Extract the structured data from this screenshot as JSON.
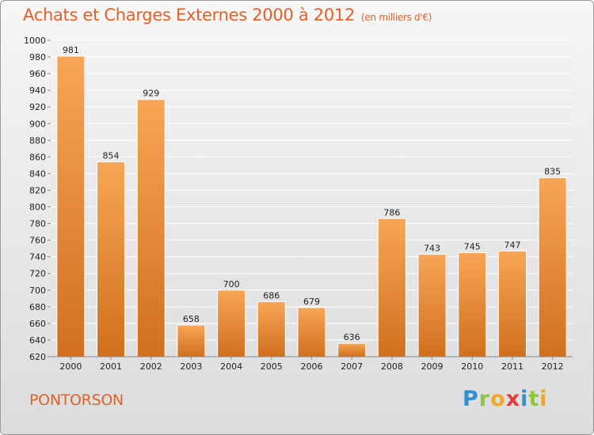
{
  "title": "Achats et Charges Externes 2000 à 2012",
  "subtitle": "(en milliers d'€)",
  "place": "PONTORSON",
  "brand": {
    "letters": [
      {
        "ch": "P",
        "color": "#2f8fd8"
      },
      {
        "ch": "r",
        "color": "#8dc63f"
      },
      {
        "ch": "o",
        "color": "#f5a623"
      },
      {
        "ch": "x",
        "color": "#e03c3c"
      },
      {
        "ch": "i",
        "color": "#2f8fd8"
      },
      {
        "ch": "t",
        "color": "#8dc63f"
      },
      {
        "ch": "i",
        "color": "#f5a623"
      }
    ]
  },
  "colors": {
    "title": "#e0612a",
    "bar_top": "#f7a556",
    "bar_bottom": "#d0701e"
  },
  "chart_data": {
    "type": "bar",
    "title": "Achats et Charges Externes 2000 à 2012",
    "subtitle": "(en milliers d'€)",
    "categories": [
      "2000",
      "2001",
      "2002",
      "2003",
      "2004",
      "2005",
      "2006",
      "2007",
      "2008",
      "2009",
      "2010",
      "2011",
      "2012"
    ],
    "values": [
      981,
      854,
      929,
      658,
      700,
      686,
      679,
      636,
      786,
      743,
      745,
      747,
      835
    ],
    "ylim": [
      620,
      1000
    ],
    "yticks": [
      620,
      640,
      660,
      680,
      700,
      720,
      740,
      760,
      780,
      800,
      820,
      840,
      860,
      880,
      900,
      920,
      940,
      960,
      980,
      1000
    ],
    "grid": true,
    "xlabel": "",
    "ylabel": ""
  }
}
